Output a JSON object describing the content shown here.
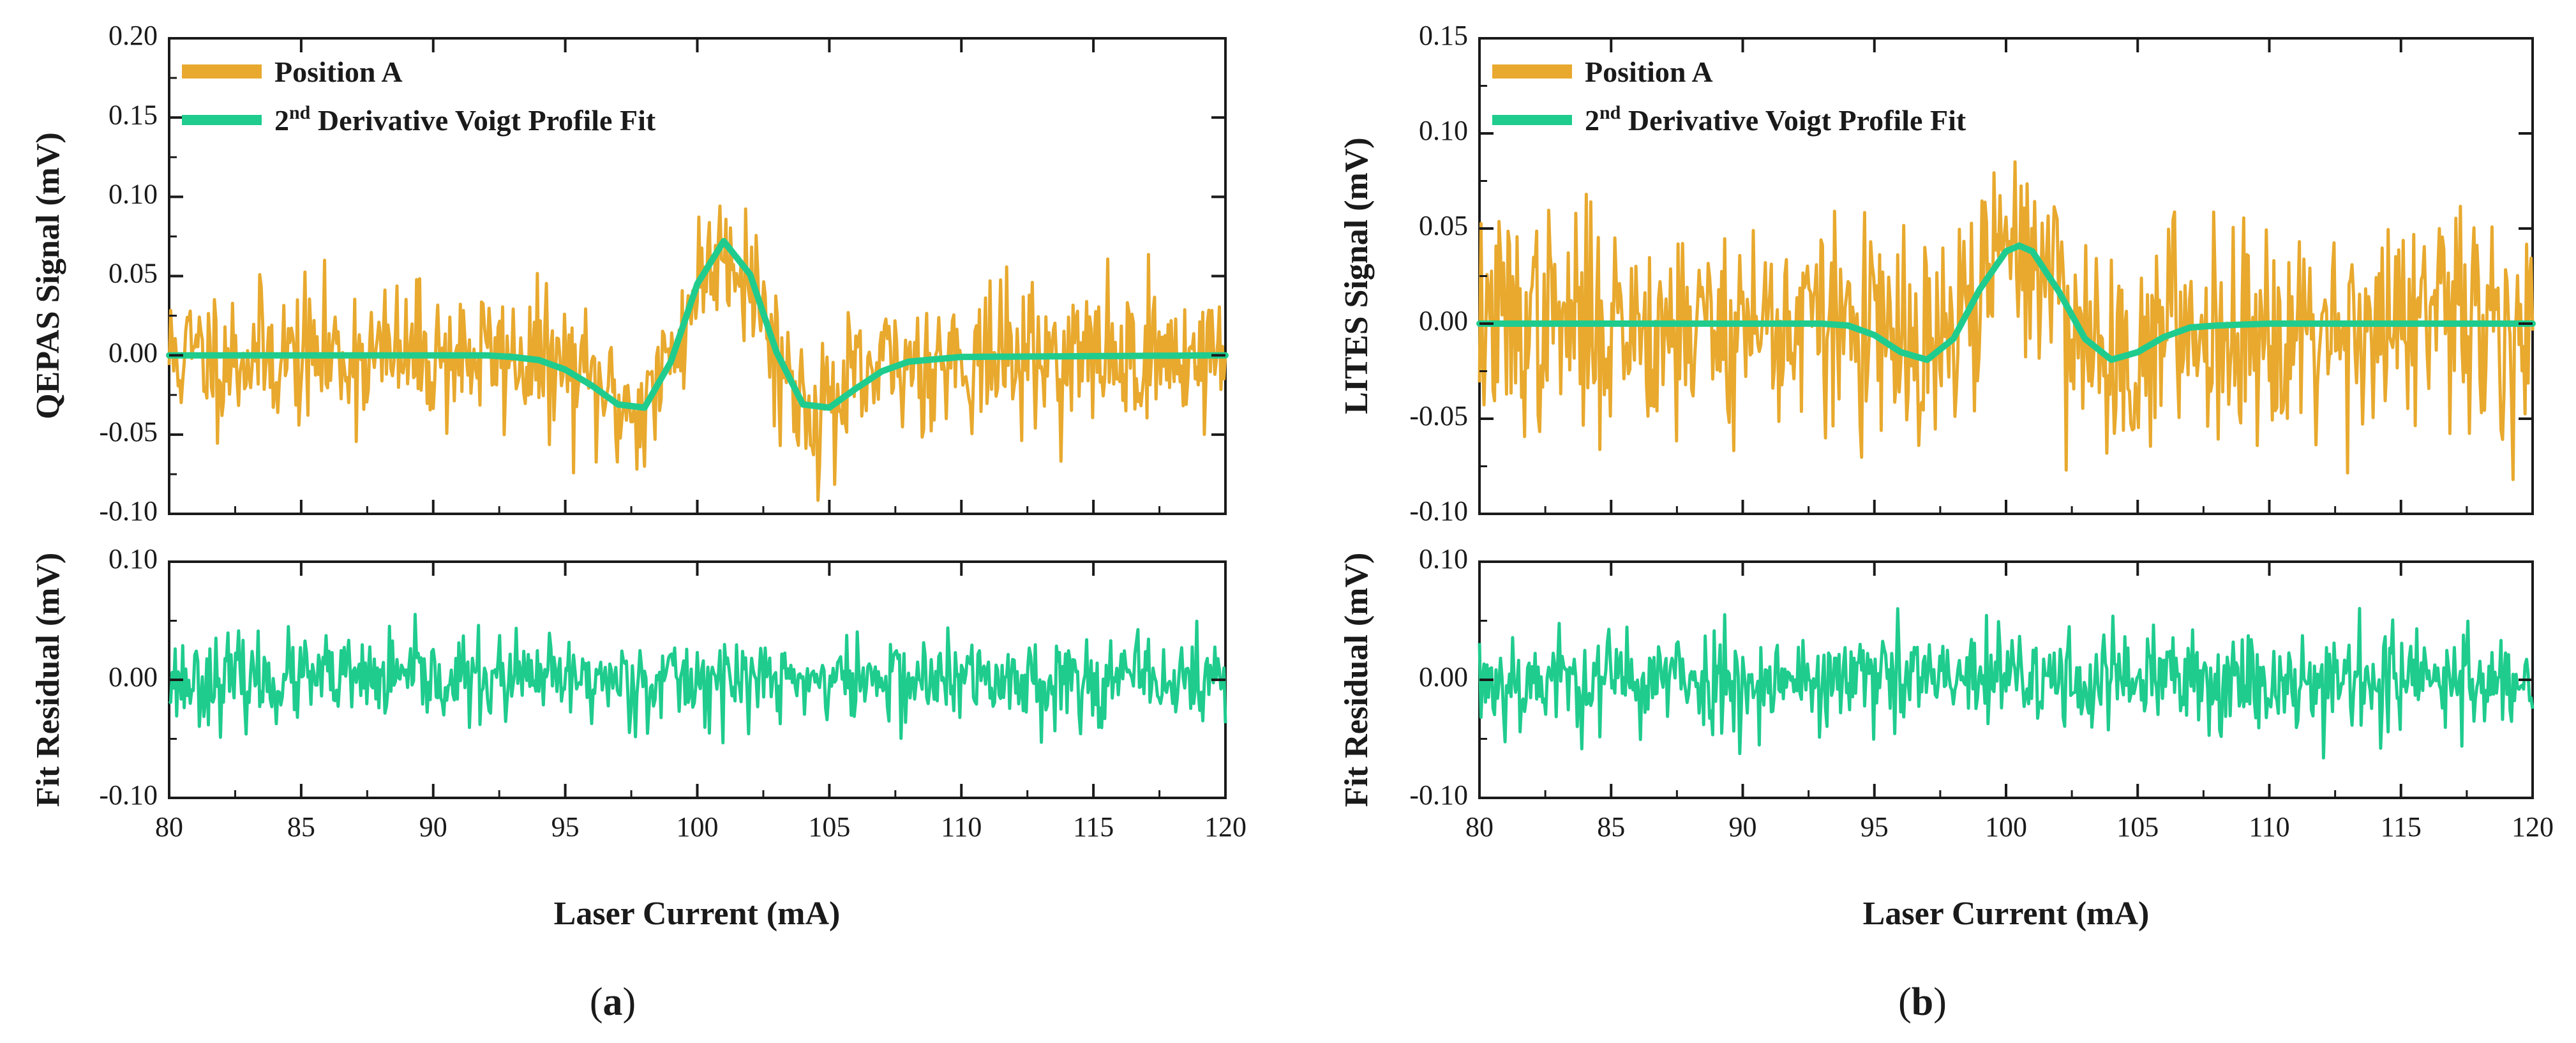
{
  "colors": {
    "signal": "#E8A92E",
    "fit": "#1FCC8E",
    "axis": "#1a1a1a"
  },
  "common": {
    "xlabel": "Laser Current (mA)",
    "x_ticks": [
      "80",
      "85",
      "90",
      "95",
      "100",
      "105",
      "110",
      "115",
      "120"
    ]
  },
  "legend": {
    "signal_label": "Position A",
    "fit_prefix": "2",
    "fit_sup": "nd",
    "fit_suffix": " Derivative Voigt Profile Fit"
  },
  "panels": [
    {
      "id": "a",
      "label_open": "(",
      "label_letter": "a",
      "label_close": ")",
      "top_ylabel": "QEPAS Signal (mV)",
      "bottom_ylabel": "Fit Residual (mV)",
      "top_ticks": [
        "0.20",
        "0.15",
        "0.10",
        "0.05",
        "0.00",
        "-0.05",
        "-0.10"
      ],
      "bottom_ticks": [
        "0.10",
        "0.00",
        "-0.10"
      ]
    },
    {
      "id": "b",
      "label_open": "(",
      "label_letter": "b",
      "label_close": ")",
      "top_ylabel": "LITES Signal (mV)",
      "bottom_ylabel": "Fit Residual (mV)",
      "top_ticks": [
        "0.15",
        "0.10",
        "0.05",
        "0.00",
        "-0.05",
        "-0.10"
      ],
      "bottom_ticks": [
        "0.10",
        "0.00",
        "-0.10"
      ]
    }
  ],
  "chart_data": [
    {
      "panel": "a",
      "type": "line",
      "xlabel": "Laser Current (mA)",
      "ylabel": "QEPAS Signal (mV)",
      "xlim": [
        80,
        120
      ],
      "ylim": [
        -0.1,
        0.2
      ],
      "legend_position": "top-left",
      "series": [
        {
          "name": "Position A",
          "style": "noisy",
          "noise_sd": 0.022,
          "seed": 11
        },
        {
          "name": "2nd Derivative Voigt Profile Fit",
          "x": [
            80,
            92,
            93,
            94,
            95,
            96,
            97,
            98,
            99,
            100,
            101,
            102,
            103,
            104,
            105,
            106,
            107,
            108,
            110,
            120
          ],
          "y": [
            0,
            0,
            -0.001,
            -0.003,
            -0.009,
            -0.019,
            -0.031,
            -0.033,
            -0.004,
            0.045,
            0.072,
            0.051,
            0.002,
            -0.031,
            -0.033,
            -0.021,
            -0.01,
            -0.004,
            -0.001,
            0
          ]
        }
      ]
    },
    {
      "panel": "a",
      "type": "line",
      "xlabel": "Laser Current (mA)",
      "ylabel": "Fit Residual (mV)",
      "xlim": [
        80,
        120
      ],
      "ylim": [
        -0.1,
        0.1
      ],
      "series": [
        {
          "name": "Fit Residual",
          "style": "noisy",
          "noise_sd": 0.018,
          "seed": 23
        }
      ]
    },
    {
      "panel": "b",
      "type": "line",
      "xlabel": "Laser Current (mA)",
      "ylabel": "LITES Signal (mV)",
      "xlim": [
        80,
        120
      ],
      "ylim": [
        -0.1,
        0.15
      ],
      "legend_position": "top-left",
      "series": [
        {
          "name": "Position A",
          "style": "noisy",
          "noise_sd": 0.028,
          "seed": 37
        },
        {
          "name": "2nd Derivative Voigt Profile Fit",
          "x": [
            80,
            92,
            93,
            94,
            95,
            96,
            97,
            98,
            99,
            100,
            100.5,
            101,
            102,
            103,
            104,
            105,
            106,
            107,
            108,
            110,
            120
          ],
          "y": [
            0,
            0,
            0,
            -0.001,
            -0.006,
            -0.015,
            -0.019,
            -0.008,
            0.018,
            0.038,
            0.041,
            0.038,
            0.017,
            -0.008,
            -0.019,
            -0.015,
            -0.007,
            -0.002,
            -0.001,
            0,
            0
          ]
        }
      ]
    },
    {
      "panel": "b",
      "type": "line",
      "xlabel": "Laser Current (mA)",
      "ylabel": "Fit Residual (mV)",
      "xlim": [
        80,
        120
      ],
      "ylim": [
        -0.1,
        0.1
      ],
      "series": [
        {
          "name": "Fit Residual",
          "style": "noisy",
          "noise_sd": 0.022,
          "seed": 53
        }
      ]
    }
  ]
}
